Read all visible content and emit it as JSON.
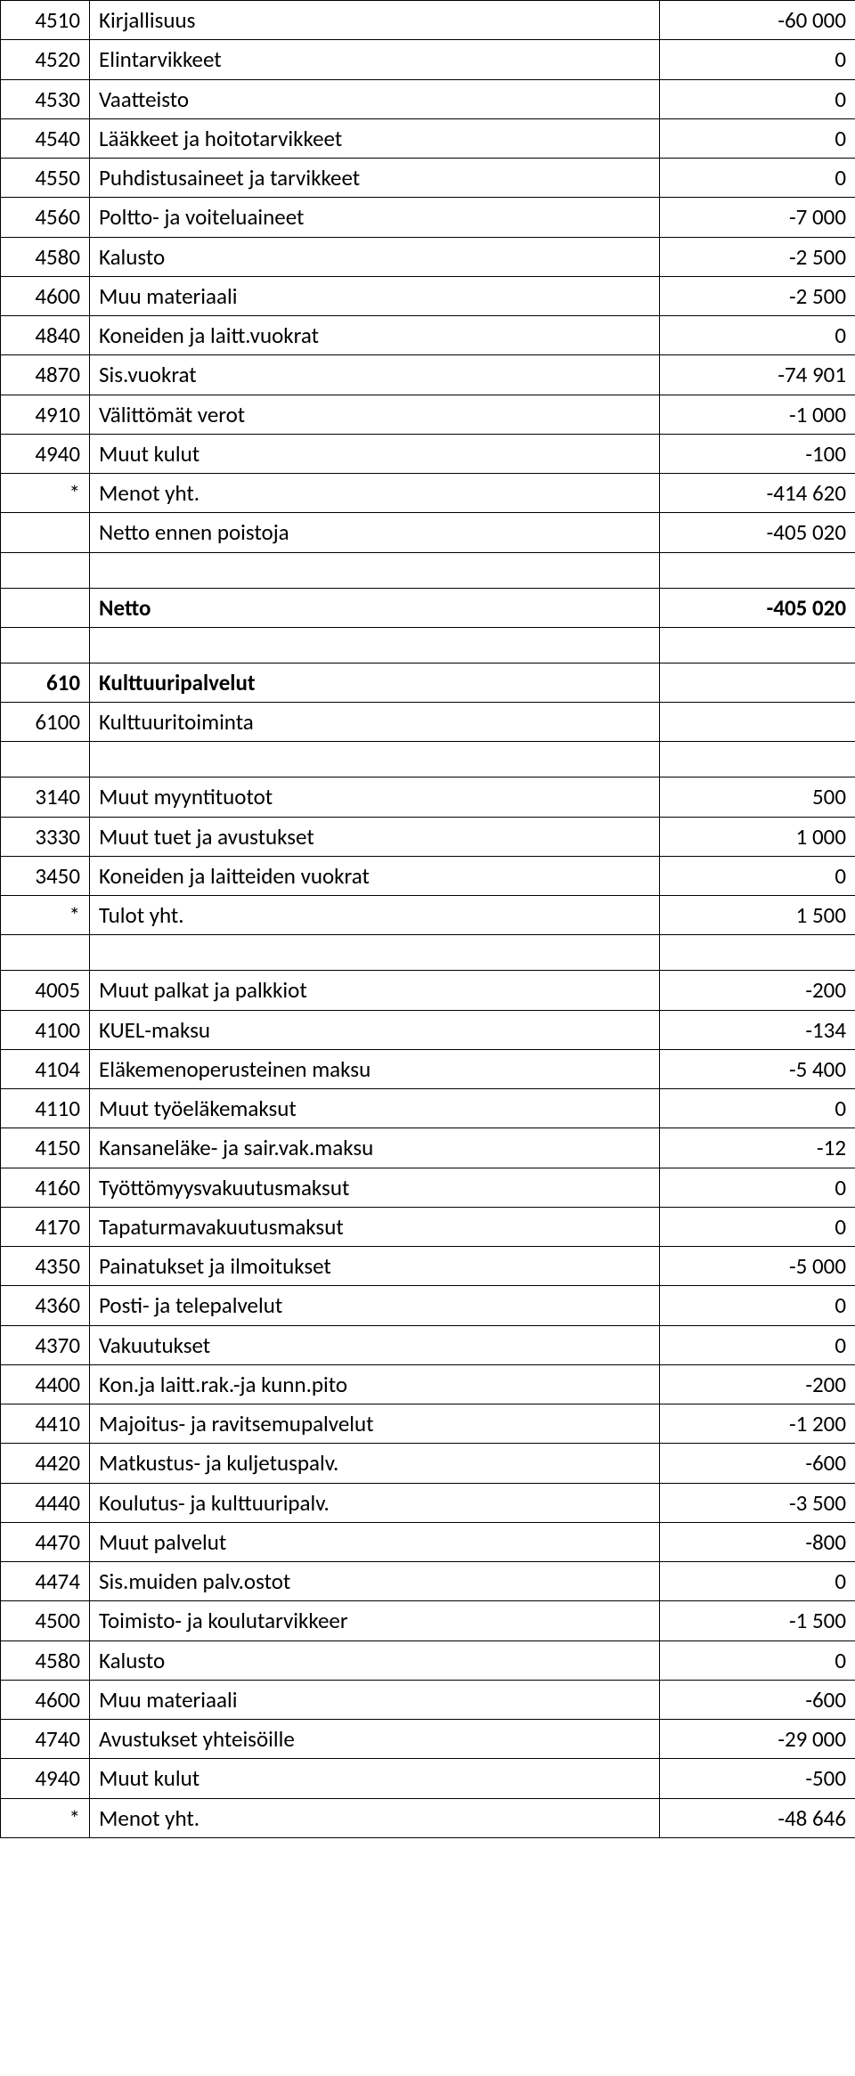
{
  "rows": [
    {
      "code": "4510",
      "desc": "Kirjallisuus",
      "val": "-60 000"
    },
    {
      "code": "4520",
      "desc": "Elintarvikkeet",
      "val": "0"
    },
    {
      "code": "4530",
      "desc": "Vaatteisto",
      "val": "0"
    },
    {
      "code": "4540",
      "desc": "Lääkkeet ja hoitotarvikkeet",
      "val": "0"
    },
    {
      "code": "4550",
      "desc": "Puhdistusaineet ja tarvikkeet",
      "val": "0"
    },
    {
      "code": "4560",
      "desc": "Poltto- ja voiteluaineet",
      "val": "-7 000"
    },
    {
      "code": "4580",
      "desc": "Kalusto",
      "val": "-2 500"
    },
    {
      "code": "4600",
      "desc": "Muu materiaali",
      "val": "-2 500"
    },
    {
      "code": "4840",
      "desc": "Koneiden ja laitt.vuokrat",
      "val": "0"
    },
    {
      "code": "4870",
      "desc": "Sis.vuokrat",
      "val": "-74 901"
    },
    {
      "code": "4910",
      "desc": "Välittömät verot",
      "val": "-1 000"
    },
    {
      "code": "4940",
      "desc": "Muut kulut",
      "val": "-100"
    },
    {
      "code": "*",
      "desc": "Menot yht.",
      "val": "-414 620"
    },
    {
      "code": "",
      "desc": "Netto ennen poistoja",
      "val": "-405 020"
    },
    {
      "spacer": true
    },
    {
      "code": "",
      "desc": "Netto",
      "val": "-405 020",
      "bold": true
    },
    {
      "spacer": true
    },
    {
      "code": "610",
      "desc": "Kulttuuripalvelut",
      "val": "",
      "bold": true
    },
    {
      "code": "6100",
      "desc": "Kulttuuritoiminta",
      "val": ""
    },
    {
      "spacer": true
    },
    {
      "code": "3140",
      "desc": "Muut myyntituotot",
      "val": "500"
    },
    {
      "code": "3330",
      "desc": "Muut tuet ja avustukset",
      "val": "1 000"
    },
    {
      "code": "3450",
      "desc": "Koneiden ja laitteiden vuokrat",
      "val": "0"
    },
    {
      "code": "*",
      "desc": "Tulot yht.",
      "val": "1 500"
    },
    {
      "spacer": true
    },
    {
      "code": "4005",
      "desc": "Muut palkat ja palkkiot",
      "val": "-200"
    },
    {
      "code": "4100",
      "desc": "KUEL-maksu",
      "val": "-134"
    },
    {
      "code": "4104",
      "desc": "Eläkemenoperusteinen maksu",
      "val": "-5 400"
    },
    {
      "code": "4110",
      "desc": "Muut työeläkemaksut",
      "val": "0"
    },
    {
      "code": "4150",
      "desc": "Kansaneläke- ja sair.vak.maksu",
      "val": "-12"
    },
    {
      "code": "4160",
      "desc": "Työttömyysvakuutusmaksut",
      "val": "0"
    },
    {
      "code": "4170",
      "desc": "Tapaturmavakuutusmaksut",
      "val": "0"
    },
    {
      "code": "4350",
      "desc": "Painatukset ja ilmoitukset",
      "val": "-5 000"
    },
    {
      "code": "4360",
      "desc": "Posti- ja telepalvelut",
      "val": "0"
    },
    {
      "code": "4370",
      "desc": "Vakuutukset",
      "val": "0"
    },
    {
      "code": "4400",
      "desc": "Kon.ja laitt.rak.-ja kunn.pito",
      "val": "-200"
    },
    {
      "code": "4410",
      "desc": "Majoitus- ja ravitsemupalvelut",
      "val": "-1 200"
    },
    {
      "code": "4420",
      "desc": "Matkustus- ja kuljetuspalv.",
      "val": "-600"
    },
    {
      "code": "4440",
      "desc": "Koulutus- ja kulttuuripalv.",
      "val": "-3 500"
    },
    {
      "code": "4470",
      "desc": "Muut palvelut",
      "val": "-800"
    },
    {
      "code": "4474",
      "desc": "Sis.muiden palv.ostot",
      "val": "0"
    },
    {
      "code": "4500",
      "desc": "Toimisto- ja koulutarvikkeer",
      "val": "-1 500"
    },
    {
      "code": "4580",
      "desc": "Kalusto",
      "val": "0"
    },
    {
      "code": "4600",
      "desc": "Muu materiaali",
      "val": "-600"
    },
    {
      "code": "4740",
      "desc": "Avustukset yhteisöille",
      "val": "-29 000"
    },
    {
      "code": "4940",
      "desc": "Muut kulut",
      "val": "-500"
    },
    {
      "code": "*",
      "desc": "Menot yht.",
      "val": "-48 646"
    }
  ]
}
